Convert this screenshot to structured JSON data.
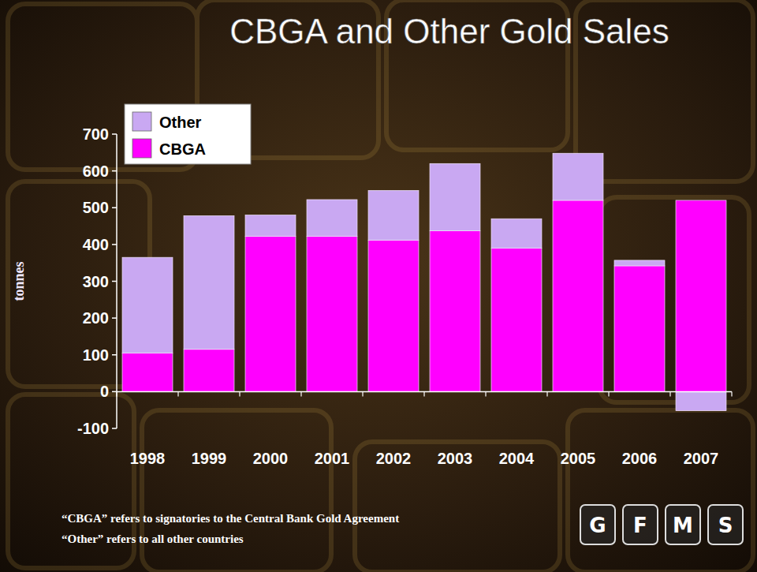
{
  "chart_data": {
    "type": "bar",
    "title": "CBGA and Other Gold Sales",
    "y_label": "tonnes",
    "categories": [
      "1998",
      "1999",
      "2000",
      "2001",
      "2002",
      "2003",
      "2004",
      "2005",
      "2006",
      "2007"
    ],
    "series": [
      {
        "name": "CBGA",
        "color": "#ff00ff",
        "values": [
          105,
          115,
          422,
          422,
          412,
          437,
          390,
          520,
          342,
          520
        ]
      },
      {
        "name": "Other",
        "color": "#c9a8f2",
        "values": [
          260,
          363,
          58,
          100,
          135,
          183,
          80,
          128,
          15,
          -52
        ]
      }
    ],
    "ylim": [
      -100,
      700
    ],
    "yticks": [
      -100,
      0,
      100,
      200,
      300,
      400,
      500,
      600,
      700
    ],
    "stacked": true,
    "grid": false,
    "legend": "top-left",
    "notes": [
      "“CBGA” refers to signatories to the Central Bank Gold Agreement",
      "“Other” refers to all other countries"
    ],
    "logo": [
      "G",
      "F",
      "M",
      "S"
    ]
  }
}
